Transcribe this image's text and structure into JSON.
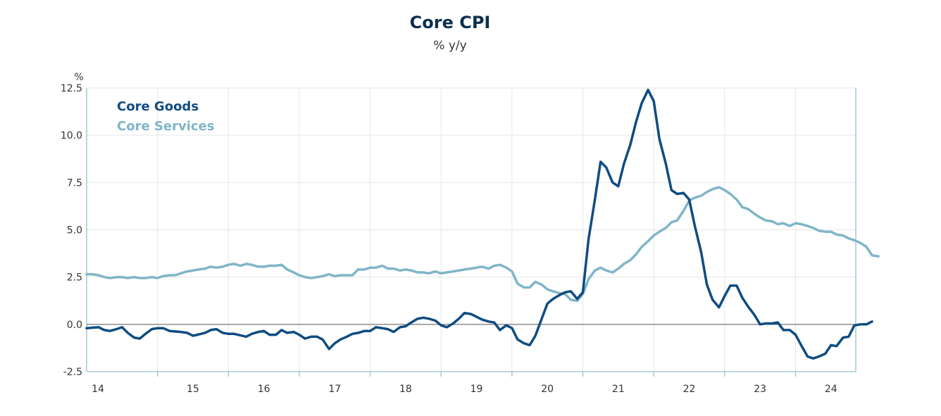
{
  "chart_data": {
    "type": "line",
    "title": "Core CPI",
    "subtitle": "% y/y",
    "ylabel": "%",
    "xlabel": "",
    "ylim": [
      -2.5,
      12.5
    ],
    "y_ticks": [
      "-2.5",
      "0.0",
      "2.5",
      "5.0",
      "7.5",
      "10.0",
      "12.5"
    ],
    "x_ticks": [
      "14",
      "15",
      "16",
      "17",
      "18",
      "19",
      "20",
      "21",
      "22",
      "23",
      "24"
    ],
    "x_range": [
      2014.0,
      2024.85
    ],
    "grid": true,
    "legend_position": "top-left",
    "colors": {
      "goods": "#0f4c81",
      "services": "#7fb5c8",
      "zero_line": "#555555",
      "grid": "#e6e6e6",
      "axis": "#a8c8d6"
    },
    "series": [
      {
        "name": "Core Goods",
        "points": [
          [
            2014.0,
            -0.2
          ],
          [
            2014.17,
            -0.15
          ],
          [
            2014.25,
            -0.3
          ],
          [
            2014.33,
            -0.35
          ],
          [
            2014.42,
            -0.25
          ],
          [
            2014.5,
            -0.15
          ],
          [
            2014.58,
            -0.45
          ],
          [
            2014.67,
            -0.7
          ],
          [
            2014.75,
            -0.75
          ],
          [
            2014.83,
            -0.5
          ],
          [
            2014.92,
            -0.25
          ],
          [
            2015.0,
            -0.2
          ],
          [
            2015.08,
            -0.2
          ],
          [
            2015.17,
            -0.35
          ],
          [
            2015.33,
            -0.4
          ],
          [
            2015.42,
            -0.45
          ],
          [
            2015.5,
            -0.6
          ],
          [
            2015.67,
            -0.45
          ],
          [
            2015.75,
            -0.3
          ],
          [
            2015.83,
            -0.25
          ],
          [
            2015.92,
            -0.45
          ],
          [
            2016.0,
            -0.5
          ],
          [
            2016.08,
            -0.5
          ],
          [
            2016.25,
            -0.65
          ],
          [
            2016.33,
            -0.5
          ],
          [
            2016.42,
            -0.4
          ],
          [
            2016.5,
            -0.35
          ],
          [
            2016.58,
            -0.55
          ],
          [
            2016.67,
            -0.55
          ],
          [
            2016.75,
            -0.3
          ],
          [
            2016.83,
            -0.45
          ],
          [
            2016.92,
            -0.4
          ],
          [
            2017.0,
            -0.55
          ],
          [
            2017.08,
            -0.75
          ],
          [
            2017.17,
            -0.65
          ],
          [
            2017.25,
            -0.65
          ],
          [
            2017.33,
            -0.8
          ],
          [
            2017.42,
            -1.3
          ],
          [
            2017.5,
            -1.0
          ],
          [
            2017.58,
            -0.8
          ],
          [
            2017.67,
            -0.65
          ],
          [
            2017.75,
            -0.5
          ],
          [
            2017.83,
            -0.45
          ],
          [
            2017.92,
            -0.35
          ],
          [
            2018.0,
            -0.35
          ],
          [
            2018.08,
            -0.15
          ],
          [
            2018.17,
            -0.2
          ],
          [
            2018.25,
            -0.25
          ],
          [
            2018.33,
            -0.4
          ],
          [
            2018.42,
            -0.15
          ],
          [
            2018.5,
            -0.1
          ],
          [
            2018.58,
            0.1
          ],
          [
            2018.67,
            0.3
          ],
          [
            2018.75,
            0.35
          ],
          [
            2018.83,
            0.3
          ],
          [
            2018.92,
            0.2
          ],
          [
            2019.0,
            -0.05
          ],
          [
            2019.08,
            -0.15
          ],
          [
            2019.17,
            0.05
          ],
          [
            2019.25,
            0.3
          ],
          [
            2019.33,
            0.6
          ],
          [
            2019.42,
            0.55
          ],
          [
            2019.5,
            0.4
          ],
          [
            2019.58,
            0.25
          ],
          [
            2019.67,
            0.15
          ],
          [
            2019.75,
            0.1
          ],
          [
            2019.83,
            -0.3
          ],
          [
            2019.92,
            -0.05
          ],
          [
            2020.0,
            -0.2
          ],
          [
            2020.08,
            -0.8
          ],
          [
            2020.17,
            -1.0
          ],
          [
            2020.25,
            -1.1
          ],
          [
            2020.33,
            -0.6
          ],
          [
            2020.42,
            0.3
          ],
          [
            2020.5,
            1.1
          ],
          [
            2020.58,
            1.35
          ],
          [
            2020.67,
            1.55
          ],
          [
            2020.75,
            1.7
          ],
          [
            2020.83,
            1.75
          ],
          [
            2020.92,
            1.35
          ],
          [
            2021.0,
            1.7
          ],
          [
            2021.08,
            4.5
          ],
          [
            2021.17,
            6.6
          ],
          [
            2021.25,
            8.6
          ],
          [
            2021.33,
            8.3
          ],
          [
            2021.42,
            7.5
          ],
          [
            2021.5,
            7.3
          ],
          [
            2021.58,
            8.5
          ],
          [
            2021.67,
            9.5
          ],
          [
            2021.75,
            10.7
          ],
          [
            2021.83,
            11.7
          ],
          [
            2021.92,
            12.4
          ],
          [
            2022.0,
            11.8
          ],
          [
            2022.08,
            9.8
          ],
          [
            2022.17,
            8.5
          ],
          [
            2022.25,
            7.1
          ],
          [
            2022.33,
            6.9
          ],
          [
            2022.42,
            6.95
          ],
          [
            2022.5,
            6.6
          ],
          [
            2022.58,
            5.2
          ],
          [
            2022.67,
            3.8
          ],
          [
            2022.75,
            2.1
          ],
          [
            2022.83,
            1.3
          ],
          [
            2022.92,
            0.9
          ],
          [
            2023.0,
            1.5
          ],
          [
            2023.08,
            2.05
          ],
          [
            2023.17,
            2.05
          ],
          [
            2023.25,
            1.4
          ],
          [
            2023.33,
            0.95
          ],
          [
            2023.42,
            0.5
          ],
          [
            2023.5,
            0.0
          ],
          [
            2023.58,
            0.05
          ],
          [
            2023.67,
            0.05
          ],
          [
            2023.75,
            0.1
          ],
          [
            2023.83,
            -0.3
          ],
          [
            2023.92,
            -0.3
          ],
          [
            2024.0,
            -0.55
          ],
          [
            2024.08,
            -1.1
          ],
          [
            2024.17,
            -1.7
          ],
          [
            2024.25,
            -1.8
          ],
          [
            2024.33,
            -1.7
          ],
          [
            2024.42,
            -1.55
          ],
          [
            2024.5,
            -1.1
          ],
          [
            2024.58,
            -1.15
          ],
          [
            2024.67,
            -0.7
          ],
          [
            2024.75,
            -0.65
          ],
          [
            2024.83,
            -0.05
          ],
          [
            2024.92,
            0.0
          ],
          [
            2025.0,
            0.0
          ],
          [
            2025.08,
            0.15
          ]
        ]
      },
      {
        "name": "Core Services",
        "points": [
          [
            2014.0,
            2.65
          ],
          [
            2014.08,
            2.65
          ],
          [
            2014.17,
            2.6
          ],
          [
            2014.25,
            2.5
          ],
          [
            2014.33,
            2.45
          ],
          [
            2014.42,
            2.5
          ],
          [
            2014.5,
            2.5
          ],
          [
            2014.58,
            2.45
          ],
          [
            2014.67,
            2.5
          ],
          [
            2014.75,
            2.45
          ],
          [
            2014.83,
            2.45
          ],
          [
            2014.92,
            2.5
          ],
          [
            2015.0,
            2.45
          ],
          [
            2015.08,
            2.55
          ],
          [
            2015.17,
            2.6
          ],
          [
            2015.25,
            2.6
          ],
          [
            2015.33,
            2.7
          ],
          [
            2015.42,
            2.8
          ],
          [
            2015.5,
            2.85
          ],
          [
            2015.58,
            2.9
          ],
          [
            2015.67,
            2.95
          ],
          [
            2015.75,
            3.05
          ],
          [
            2015.83,
            3.0
          ],
          [
            2015.92,
            3.05
          ],
          [
            2016.0,
            3.15
          ],
          [
            2016.08,
            3.2
          ],
          [
            2016.17,
            3.1
          ],
          [
            2016.25,
            3.2
          ],
          [
            2016.33,
            3.15
          ],
          [
            2016.42,
            3.05
          ],
          [
            2016.5,
            3.05
          ],
          [
            2016.58,
            3.1
          ],
          [
            2016.67,
            3.1
          ],
          [
            2016.75,
            3.15
          ],
          [
            2016.83,
            2.9
          ],
          [
            2016.92,
            2.75
          ],
          [
            2017.0,
            2.6
          ],
          [
            2017.08,
            2.5
          ],
          [
            2017.17,
            2.45
          ],
          [
            2017.25,
            2.5
          ],
          [
            2017.33,
            2.55
          ],
          [
            2017.42,
            2.65
          ],
          [
            2017.5,
            2.55
          ],
          [
            2017.58,
            2.6
          ],
          [
            2017.67,
            2.6
          ],
          [
            2017.75,
            2.6
          ],
          [
            2017.83,
            2.9
          ],
          [
            2017.92,
            2.9
          ],
          [
            2018.0,
            3.0
          ],
          [
            2018.08,
            3.0
          ],
          [
            2018.17,
            3.1
          ],
          [
            2018.25,
            2.95
          ],
          [
            2018.33,
            2.95
          ],
          [
            2018.42,
            2.85
          ],
          [
            2018.5,
            2.9
          ],
          [
            2018.58,
            2.85
          ],
          [
            2018.67,
            2.75
          ],
          [
            2018.75,
            2.75
          ],
          [
            2018.83,
            2.7
          ],
          [
            2018.92,
            2.8
          ],
          [
            2019.0,
            2.7
          ],
          [
            2019.08,
            2.75
          ],
          [
            2019.17,
            2.8
          ],
          [
            2019.25,
            2.85
          ],
          [
            2019.33,
            2.9
          ],
          [
            2019.42,
            2.95
          ],
          [
            2019.5,
            3.0
          ],
          [
            2019.58,
            3.05
          ],
          [
            2019.67,
            2.95
          ],
          [
            2019.75,
            3.1
          ],
          [
            2019.83,
            3.15
          ],
          [
            2019.92,
            3.0
          ],
          [
            2020.0,
            2.8
          ],
          [
            2020.08,
            2.15
          ],
          [
            2020.17,
            1.95
          ],
          [
            2020.25,
            1.95
          ],
          [
            2020.33,
            2.25
          ],
          [
            2020.42,
            2.1
          ],
          [
            2020.5,
            1.85
          ],
          [
            2020.58,
            1.75
          ],
          [
            2020.67,
            1.65
          ],
          [
            2020.75,
            1.6
          ],
          [
            2020.83,
            1.3
          ],
          [
            2020.92,
            1.25
          ],
          [
            2021.0,
            1.6
          ],
          [
            2021.08,
            2.4
          ],
          [
            2021.17,
            2.85
          ],
          [
            2021.25,
            3.0
          ],
          [
            2021.33,
            2.85
          ],
          [
            2021.42,
            2.75
          ],
          [
            2021.5,
            2.95
          ],
          [
            2021.58,
            3.2
          ],
          [
            2021.67,
            3.4
          ],
          [
            2021.75,
            3.7
          ],
          [
            2021.83,
            4.1
          ],
          [
            2021.92,
            4.4
          ],
          [
            2022.0,
            4.7
          ],
          [
            2022.08,
            4.9
          ],
          [
            2022.17,
            5.1
          ],
          [
            2022.25,
            5.4
          ],
          [
            2022.33,
            5.5
          ],
          [
            2022.42,
            6.0
          ],
          [
            2022.5,
            6.55
          ],
          [
            2022.58,
            6.7
          ],
          [
            2022.67,
            6.8
          ],
          [
            2022.75,
            7.0
          ],
          [
            2022.83,
            7.15
          ],
          [
            2022.92,
            7.25
          ],
          [
            2023.0,
            7.1
          ],
          [
            2023.08,
            6.9
          ],
          [
            2023.17,
            6.6
          ],
          [
            2023.25,
            6.2
          ],
          [
            2023.33,
            6.1
          ],
          [
            2023.42,
            5.85
          ],
          [
            2023.5,
            5.65
          ],
          [
            2023.58,
            5.5
          ],
          [
            2023.67,
            5.45
          ],
          [
            2023.75,
            5.3
          ],
          [
            2023.83,
            5.35
          ],
          [
            2023.92,
            5.2
          ],
          [
            2024.0,
            5.35
          ],
          [
            2024.08,
            5.3
          ],
          [
            2024.17,
            5.2
          ],
          [
            2024.25,
            5.1
          ],
          [
            2024.33,
            4.95
          ],
          [
            2024.42,
            4.9
          ],
          [
            2024.5,
            4.9
          ],
          [
            2024.58,
            4.75
          ],
          [
            2024.67,
            4.7
          ],
          [
            2024.75,
            4.55
          ],
          [
            2024.83,
            4.45
          ],
          [
            2024.92,
            4.3
          ],
          [
            2025.0,
            4.1
          ],
          [
            2025.08,
            3.65
          ],
          [
            2025.17,
            3.6
          ]
        ]
      }
    ]
  }
}
